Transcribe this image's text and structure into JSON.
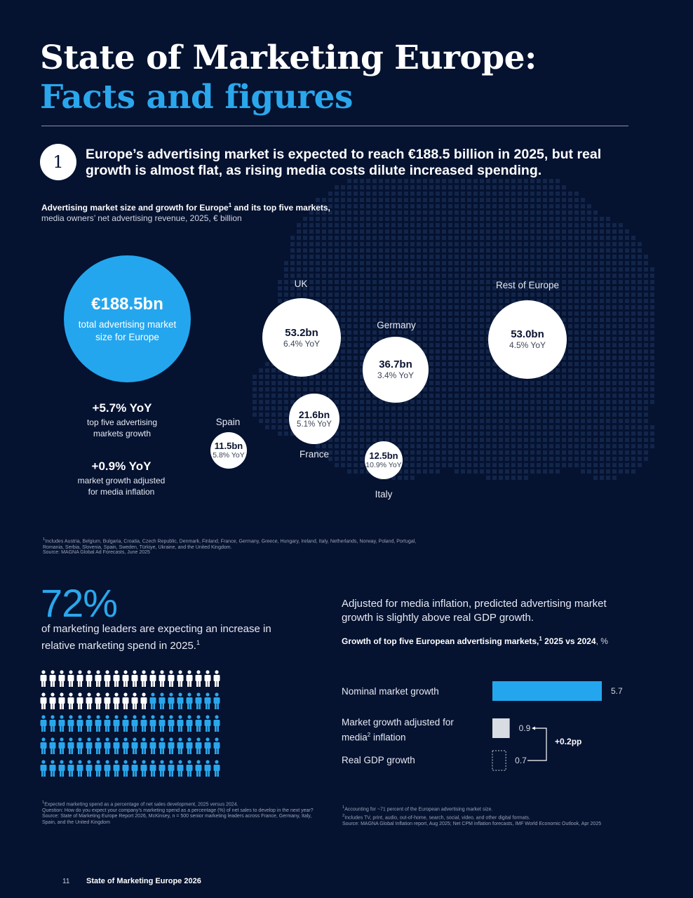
{
  "header": {
    "title_line1": "State of Marketing Europe:",
    "title_line2": "Facts and figures"
  },
  "section1": {
    "number": "1",
    "headline": "Europe’s advertising market is expected to reach €188.5 billion in 2025, but real growth is almost flat, as rising media costs dilute increased spending.",
    "chart_title_bold": "Advertising market size and growth for Europe",
    "chart_title_sup": "1",
    "chart_title_bold2": " and its top five markets,",
    "chart_title_unit": "media owners’ net advertising revenue, 2025, € billion",
    "total": {
      "value": "€188.5bn",
      "desc": "total advertising market size for Europe"
    },
    "stats": [
      {
        "value": "+5.7% YoY",
        "desc": "top five advertising markets growth"
      },
      {
        "value": "+0.9% YoY",
        "desc": "market growth adjusted for media inflation"
      }
    ],
    "footnote1": "Includes Austria, Belgium, Bulgaria, Croatia, Czech Republic, Denmark, Finland, France, Germany, Greece, Hungary, Ireland, Italy, Netherlands, Norway, Poland, Portugal, Romania, Serbia, Slovenia, Spain, Sweden, Türkiye, Ukraine, and the United Kingdom.",
    "footnote1_sup": "1",
    "source": "Source: MAGNA Global Ad Forecasts, June 2025"
  },
  "chart_data": {
    "type": "bubble",
    "unit": "€ billion",
    "markets": [
      {
        "name": "UK",
        "value": 53.2,
        "value_label": "53.2bn",
        "growth_label": "6.4% YoY",
        "growth": 6.4
      },
      {
        "name": "Germany",
        "value": 36.7,
        "value_label": "36.7bn",
        "growth_label": "3.4% YoY",
        "growth": 3.4
      },
      {
        "name": "France",
        "value": 21.6,
        "value_label": "21.6bn",
        "growth_label": "5.1% YoY",
        "growth": 5.1
      },
      {
        "name": "Spain",
        "value": 11.5,
        "value_label": "11.5bn",
        "growth_label": "5.8% YoY",
        "growth": 5.8
      },
      {
        "name": "Italy",
        "value": 12.5,
        "value_label": "12.5bn",
        "growth_label": "10.9% YoY",
        "growth": 10.9
      },
      {
        "name": "Rest of Europe",
        "value": 53.0,
        "value_label": "53.0bn",
        "growth_label": "4.5% YoY",
        "growth": 4.5
      }
    ]
  },
  "section2": {
    "percent": "72%",
    "desc": "of marketing leaders are expecting an increase in relative marketing spend in 2025.",
    "desc_sup": "1",
    "people": {
      "total": 100,
      "highlighted": 72,
      "highlight_color": "#2aa7ec",
      "base_color": "#ffffff"
    },
    "footnote_sup": "1",
    "footnote": "Expected marketing spend as a percentage of net sales development, 2025 versus 2024.",
    "question": "Question: How do you expect your company’s marketing spend as a percentage (%) of net sales to develop in the next year?",
    "source": "Source: State of Marketing Europe Report 2026, McKinsey, n = 500 senior marketing leaders across France, Germany, Italy, Spain, and the United Kingdom"
  },
  "section3": {
    "text": "Adjusted for media inflation, predicted advertising market growth is slightly above real GDP growth.",
    "chart_title_bold": "Growth of top five European advertising markets,",
    "chart_title_sup": "1",
    "chart_title_bold2": " 2025 vs 2024",
    "chart_title_unit": ", %",
    "bar_chart": {
      "type": "bar",
      "xmax": 5.7,
      "bars": [
        {
          "label": "Nominal market growth",
          "value": 5.7,
          "value_label": "5.7",
          "style": "solid-blue"
        },
        {
          "label_a": "Market growth adjusted for media",
          "label_sup": "2",
          "label_b": " inflation",
          "value": 0.9,
          "value_label": "0.9",
          "style": "solid-grey"
        },
        {
          "label": "Real GDP growth",
          "value": 0.7,
          "value_label": "0.7",
          "style": "dashed"
        }
      ],
      "difference_label": "+0.2pp"
    },
    "footnote1_sup": "1",
    "footnote1": "Accounting for ~71 percent of the European advertising market size.",
    "footnote2_sup": "2",
    "footnote2": "Includes TV, print, audio, out-of-home, search, social, video, and other digital formats.",
    "source": "Source: MAGNA Global Inflation report, Aug 2025; Net CPM inflation forecasts, IMF World Economic Outlook, Apr 2025"
  },
  "footer": {
    "page_number": "11",
    "title": "State of Marketing Europe 2026"
  }
}
